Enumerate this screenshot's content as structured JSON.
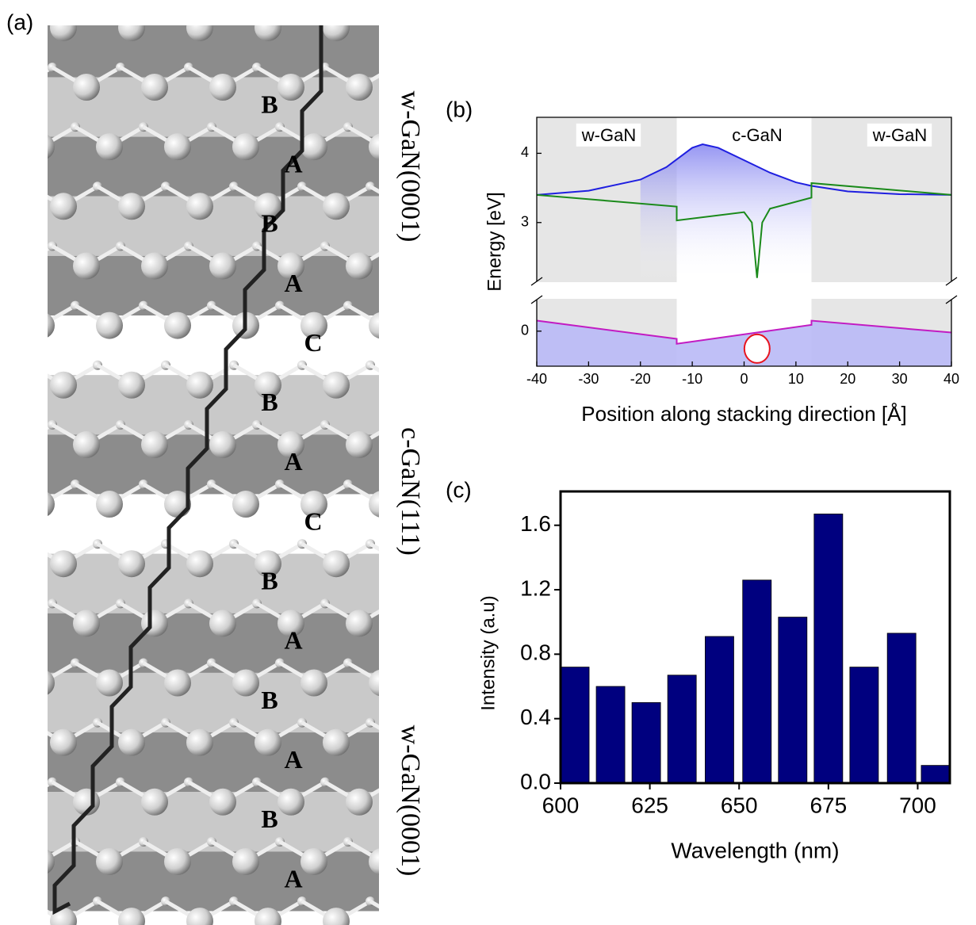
{
  "figure_labels": [
    "(a)",
    "(b)",
    "(c)"
  ],
  "structure": {
    "layers": [
      "B",
      "A",
      "B",
      "A",
      "C",
      "B",
      "A",
      "C",
      "B",
      "A",
      "B",
      "A",
      "B",
      "A"
    ],
    "phases": [
      "w-GaN(0001)",
      "c-GaN(111)",
      "w-GaN(0001)"
    ]
  },
  "chart_data": [
    {
      "type": "line",
      "xlabel": "Position along stacking direction [Å]",
      "ylabel": "Energy [eV]",
      "region_labels": [
        "w-GaN",
        "c-GaN",
        "w-GaN"
      ],
      "shaded_regions": [
        [
          -40,
          -13
        ],
        [
          13,
          40
        ]
      ],
      "xlim": [
        -40,
        40
      ],
      "xticks": [
        -40,
        -30,
        -20,
        -10,
        0,
        10,
        20,
        30,
        40
      ],
      "ylim": [
        -0.5,
        4.52
      ],
      "ybreak": [
        0.45,
        2.15
      ],
      "yticks": [
        0,
        3,
        4
      ],
      "marker": {
        "x": 2.5,
        "y": -0.25,
        "color": "#e8141e"
      },
      "series": [
        {
          "color": "#1f1fe0",
          "fill": "#c9c9f5",
          "x": [
            -40,
            -30,
            -20,
            -15,
            -10,
            -8,
            -5,
            0,
            5,
            10,
            13,
            20,
            30,
            40
          ],
          "values": [
            3.4,
            3.46,
            3.62,
            3.8,
            4.08,
            4.13,
            4.08,
            3.9,
            3.72,
            3.58,
            3.53,
            3.45,
            3.41,
            3.4
          ]
        },
        {
          "color": "#1a8a1a",
          "x": [
            -40,
            -13,
            -13,
            0,
            1.5,
            2.5,
            3.5,
            5,
            13,
            13,
            40
          ],
          "values": [
            3.4,
            3.23,
            3.03,
            3.15,
            3.0,
            2.2,
            3.0,
            3.2,
            3.36,
            3.57,
            3.4
          ]
        },
        {
          "color": "#c21bc2",
          "fill": "#b9b9f6",
          "x": [
            -40,
            -13,
            -13,
            13,
            13,
            40
          ],
          "values": [
            0.15,
            -0.11,
            -0.18,
            0.09,
            0.15,
            -0.02
          ]
        }
      ]
    },
    {
      "type": "bar",
      "xlabel": "Wavelength (nm)",
      "ylabel": "Intensity (a.u)",
      "color": "#00007f",
      "bar_width": 8,
      "x": [
        604,
        614,
        624,
        634,
        644.5,
        655,
        665,
        675,
        685,
        695.5,
        705
      ],
      "values": [
        0.72,
        0.6,
        0.5,
        0.67,
        0.91,
        1.26,
        1.03,
        1.67,
        0.72,
        0.93,
        0.11
      ],
      "xlim": [
        600,
        709
      ],
      "xticks": [
        600,
        625,
        650,
        675,
        700
      ],
      "ylim": [
        0,
        1.81
      ],
      "yticks": [
        {
          "value": 0,
          "label": "0.0"
        },
        {
          "value": 0.4,
          "label": "0.4"
        },
        {
          "value": 0.8,
          "label": "0.8"
        },
        {
          "value": 1.2,
          "label": "1.2"
        },
        {
          "value": 1.6,
          "label": "1.6"
        }
      ]
    }
  ]
}
